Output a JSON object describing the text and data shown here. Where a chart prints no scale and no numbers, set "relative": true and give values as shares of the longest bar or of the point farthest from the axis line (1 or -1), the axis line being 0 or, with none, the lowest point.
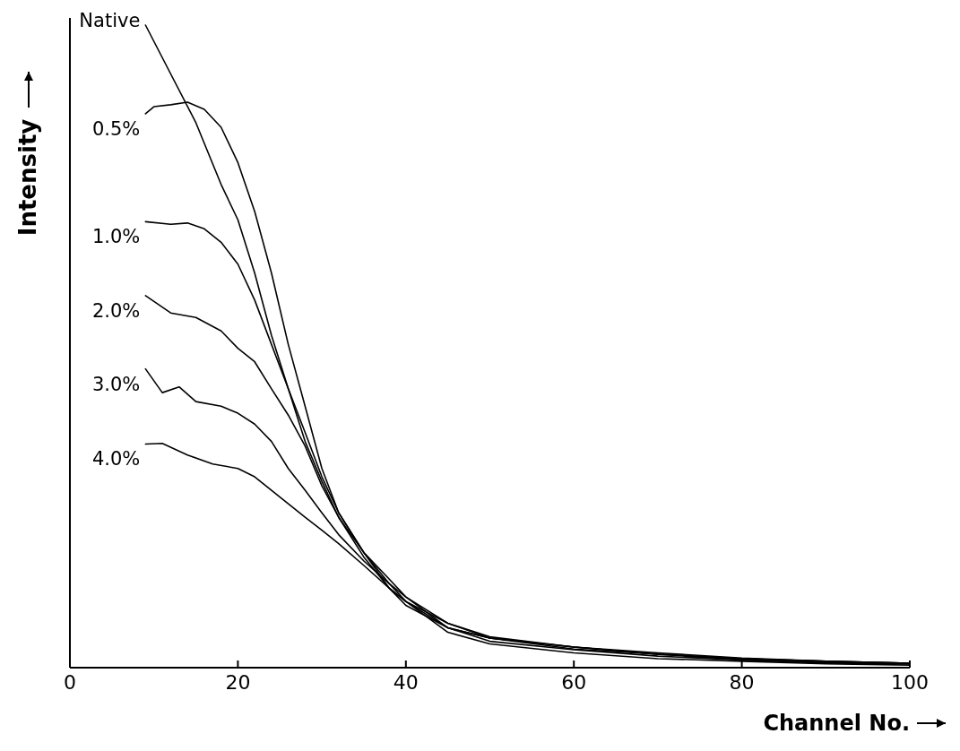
{
  "chart_data": {
    "type": "line",
    "relative": true,
    "xlabel": "Channel No.",
    "ylabel": "Intensity",
    "xlim": [
      0,
      100
    ],
    "xticks": [
      0,
      20,
      40,
      60,
      80,
      100
    ],
    "legend": false,
    "grid": false,
    "marker": "none",
    "line_style": "solid",
    "series": [
      {
        "name": "Native",
        "color": "#000000",
        "x": [
          9,
          12,
          15,
          18,
          20,
          22,
          24,
          26,
          28,
          30,
          32,
          35,
          38,
          40,
          45,
          50,
          60,
          70,
          80,
          90,
          100
        ],
        "values": [
          1.0,
          0.924,
          0.848,
          0.752,
          0.697,
          0.614,
          0.517,
          0.434,
          0.352,
          0.29,
          0.234,
          0.172,
          0.124,
          0.097,
          0.062,
          0.046,
          0.032,
          0.023,
          0.015,
          0.01,
          0.007
        ]
      },
      {
        "name": "0.5%",
        "color": "#000000",
        "x": [
          9,
          10,
          12,
          14,
          16,
          18,
          20,
          22,
          24,
          26,
          28,
          30,
          32,
          35,
          38,
          40,
          45,
          50,
          60,
          70,
          80,
          90,
          100
        ],
        "values": [
          0.862,
          0.873,
          0.876,
          0.88,
          0.869,
          0.841,
          0.786,
          0.71,
          0.614,
          0.503,
          0.407,
          0.31,
          0.241,
          0.179,
          0.124,
          0.103,
          0.069,
          0.048,
          0.032,
          0.021,
          0.014,
          0.01,
          0.007
        ]
      },
      {
        "name": "1.0%",
        "color": "#000000",
        "x": [
          9,
          12,
          14,
          16,
          18,
          20,
          22,
          24,
          26,
          28,
          30,
          32,
          35,
          38,
          40,
          45,
          50,
          60,
          70,
          80,
          90,
          100
        ],
        "values": [
          0.694,
          0.69,
          0.692,
          0.683,
          0.662,
          0.628,
          0.572,
          0.503,
          0.434,
          0.366,
          0.297,
          0.241,
          0.179,
          0.131,
          0.103,
          0.062,
          0.046,
          0.029,
          0.021,
          0.012,
          0.008,
          0.006
        ]
      },
      {
        "name": "2.0%",
        "color": "#000000",
        "x": [
          9,
          12,
          15,
          18,
          20,
          22,
          24,
          26,
          28,
          30,
          32,
          35,
          38,
          40,
          45,
          50,
          60,
          70,
          80,
          90,
          100
        ],
        "values": [
          0.579,
          0.552,
          0.545,
          0.524,
          0.497,
          0.476,
          0.434,
          0.393,
          0.345,
          0.283,
          0.234,
          0.179,
          0.138,
          0.11,
          0.062,
          0.041,
          0.028,
          0.018,
          0.012,
          0.007,
          0.006
        ]
      },
      {
        "name": "3.0%",
        "color": "#000000",
        "x": [
          9,
          11,
          13,
          15,
          18,
          20,
          22,
          24,
          26,
          28,
          30,
          32,
          35,
          38,
          40,
          45,
          50,
          60,
          70,
          80,
          90,
          100
        ],
        "values": [
          0.465,
          0.428,
          0.437,
          0.414,
          0.407,
          0.396,
          0.379,
          0.352,
          0.31,
          0.276,
          0.241,
          0.207,
          0.166,
          0.131,
          0.11,
          0.069,
          0.046,
          0.032,
          0.021,
          0.014,
          0.01,
          0.007
        ]
      },
      {
        "name": "4.0%",
        "color": "#000000",
        "x": [
          9,
          11,
          14,
          17,
          20,
          22,
          24,
          26,
          28,
          30,
          32,
          35,
          38,
          40,
          45,
          50,
          60,
          70,
          80,
          90,
          100
        ],
        "values": [
          0.348,
          0.349,
          0.331,
          0.317,
          0.31,
          0.297,
          0.276,
          0.255,
          0.234,
          0.214,
          0.193,
          0.159,
          0.124,
          0.103,
          0.055,
          0.037,
          0.023,
          0.014,
          0.01,
          0.006,
          0.004
        ]
      }
    ]
  }
}
